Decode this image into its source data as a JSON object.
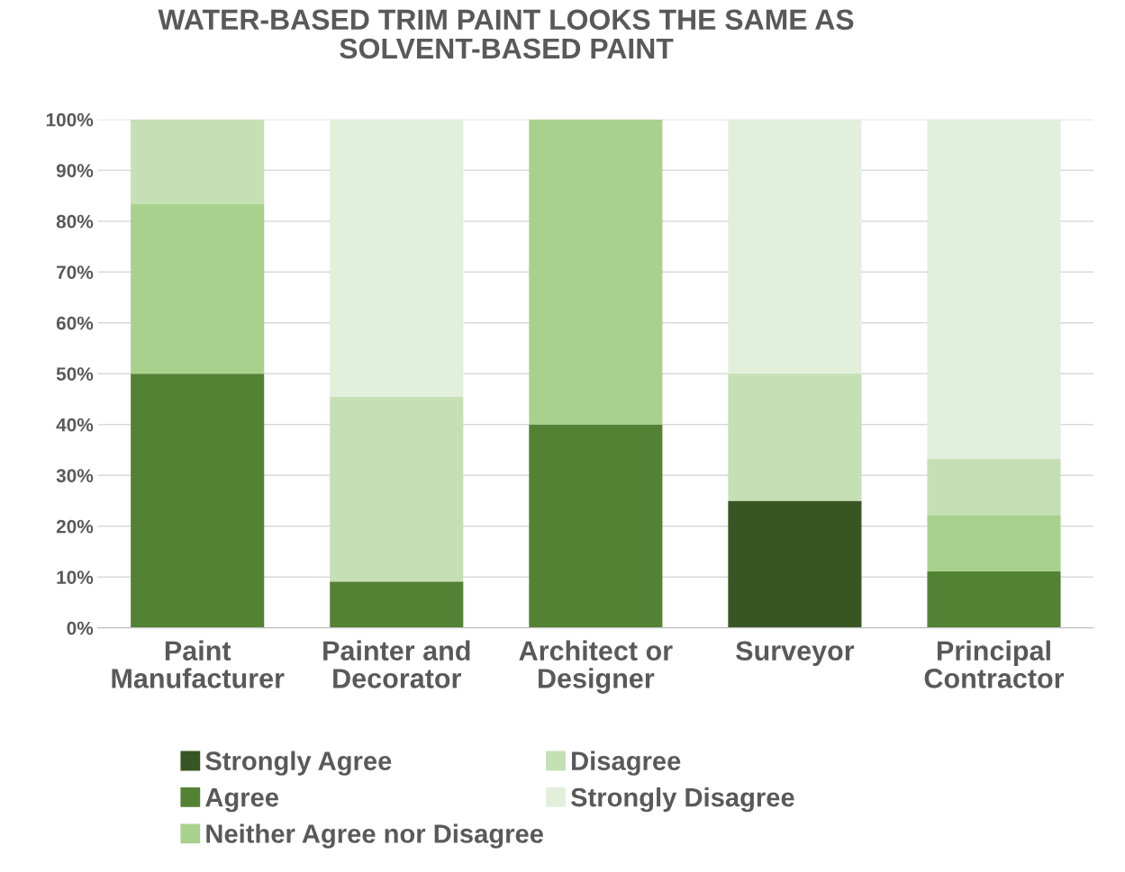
{
  "chart_data": {
    "type": "bar",
    "stacked": true,
    "title": "WATER-BASED TRIM PAINT LOOKS THE SAME AS\nSOLVENT-BASED PAINT",
    "categories": [
      "Paint\nManufacturer",
      "Painter and\nDecorator",
      "Architect or\nDesigner",
      "Surveyor",
      "Principal\nContractor"
    ],
    "series": [
      {
        "name": "Strongly Agree",
        "color": "#375623",
        "values": [
          0,
          0,
          0,
          25,
          0
        ]
      },
      {
        "name": "Agree",
        "color": "#548235",
        "values": [
          50,
          9.1,
          40,
          0,
          11.1
        ]
      },
      {
        "name": "Neither Agree nor Disagree",
        "color": "#a9d18e",
        "values": [
          33.3,
          0,
          60,
          0,
          11.1
        ]
      },
      {
        "name": "Disagree",
        "color": "#c5e0b4",
        "values": [
          16.7,
          36.4,
          0,
          25,
          11.1
        ]
      },
      {
        "name": "Strongly Disagree",
        "color": "#e2efda",
        "values": [
          0,
          54.5,
          0,
          50,
          66.7
        ]
      }
    ],
    "ylim": [
      0,
      100
    ],
    "yticks": [
      {
        "value": 0,
        "label": "0%"
      },
      {
        "value": 10,
        "label": "10%"
      },
      {
        "value": 20,
        "label": "20%"
      },
      {
        "value": 30,
        "label": "30%"
      },
      {
        "value": 40,
        "label": "40%"
      },
      {
        "value": 50,
        "label": "50%"
      },
      {
        "value": 60,
        "label": "60%"
      },
      {
        "value": 70,
        "label": "70%"
      },
      {
        "value": 80,
        "label": "80%"
      },
      {
        "value": 90,
        "label": "90%"
      },
      {
        "value": 100,
        "label": "100%"
      }
    ],
    "grid": "y",
    "legend": "bottom"
  }
}
